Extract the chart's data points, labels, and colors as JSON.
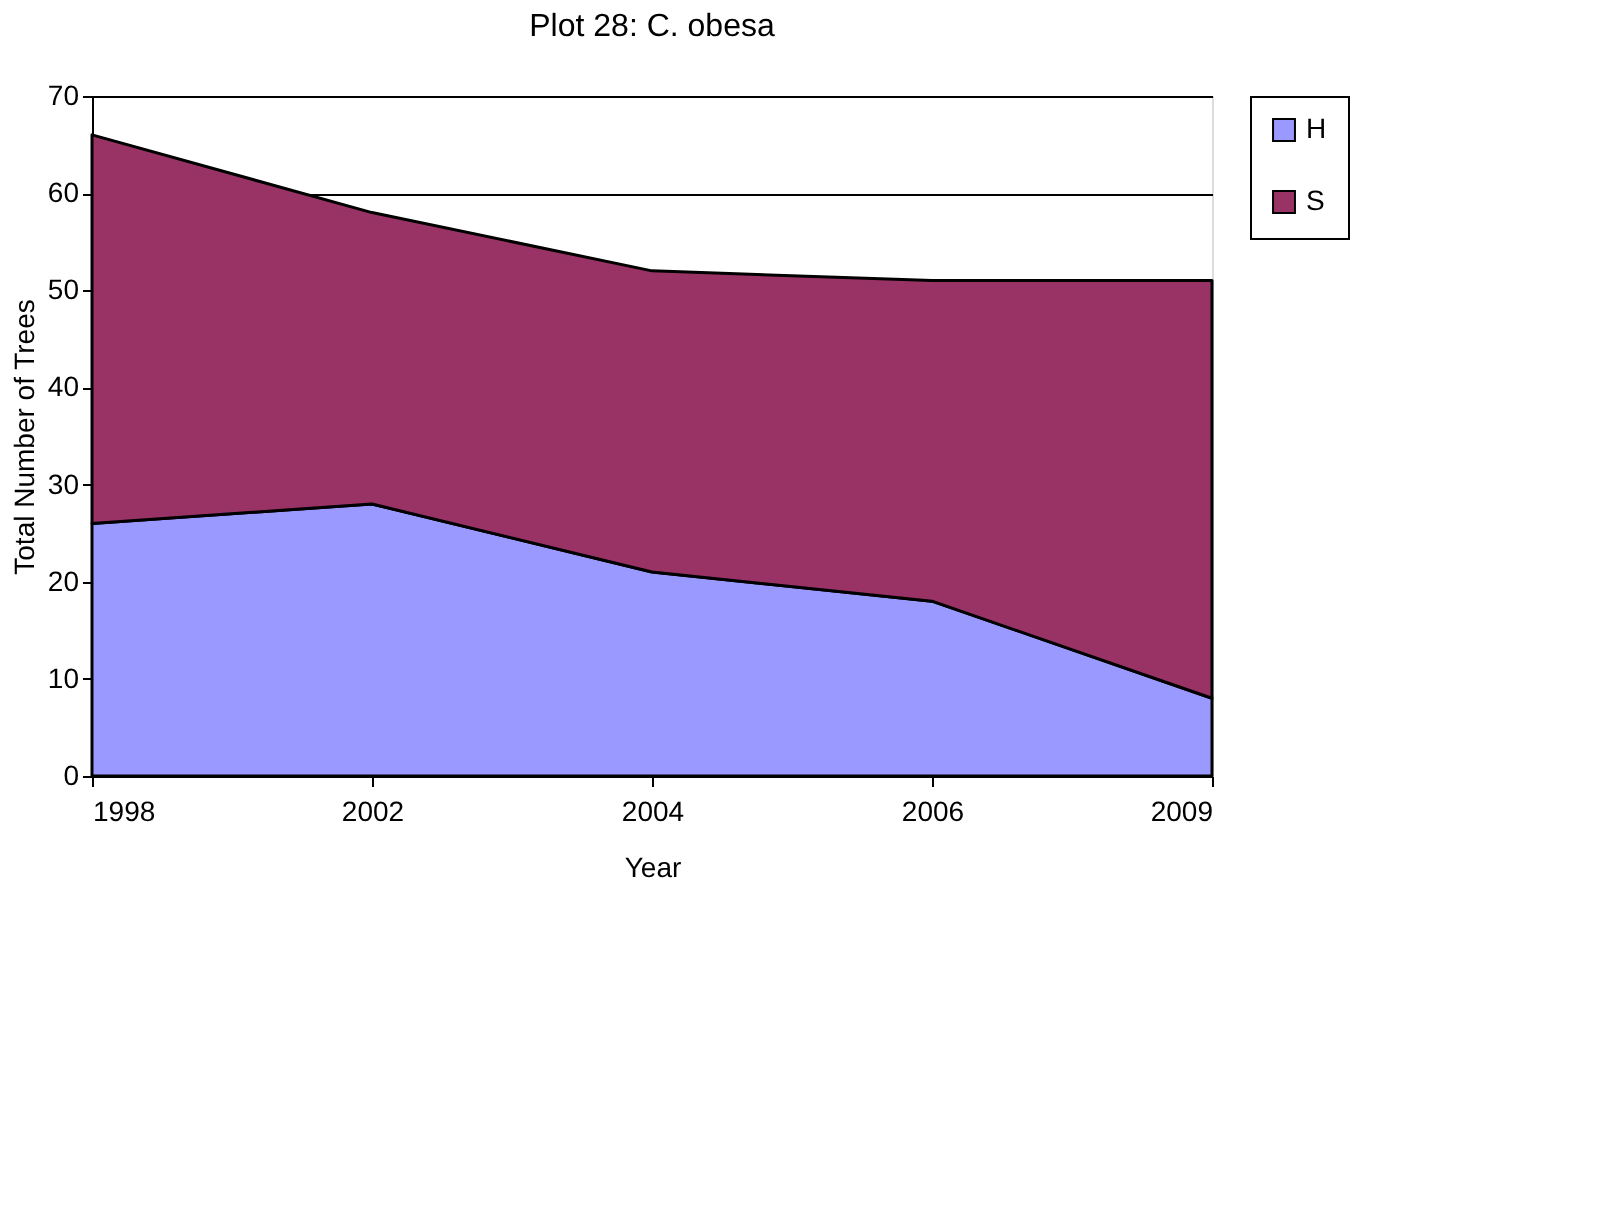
{
  "chart_data": {
    "type": "area",
    "title": "Plot 28: C. obesa",
    "xlabel": "Year",
    "ylabel": "Total Number of Trees",
    "categories": [
      "1998",
      "2002",
      "2004",
      "2006",
      "2009"
    ],
    "series": [
      {
        "name": "H",
        "color": "#9999ff",
        "values": [
          26,
          28,
          21,
          18,
          8
        ]
      },
      {
        "name": "S",
        "color": "#993366",
        "values": [
          40,
          30,
          31,
          33,
          43
        ]
      }
    ],
    "stacked": true,
    "ylim": [
      0,
      70
    ],
    "yticks": [
      0,
      10,
      20,
      30,
      40,
      50,
      60,
      70
    ],
    "grid": "y",
    "legend": "right"
  }
}
